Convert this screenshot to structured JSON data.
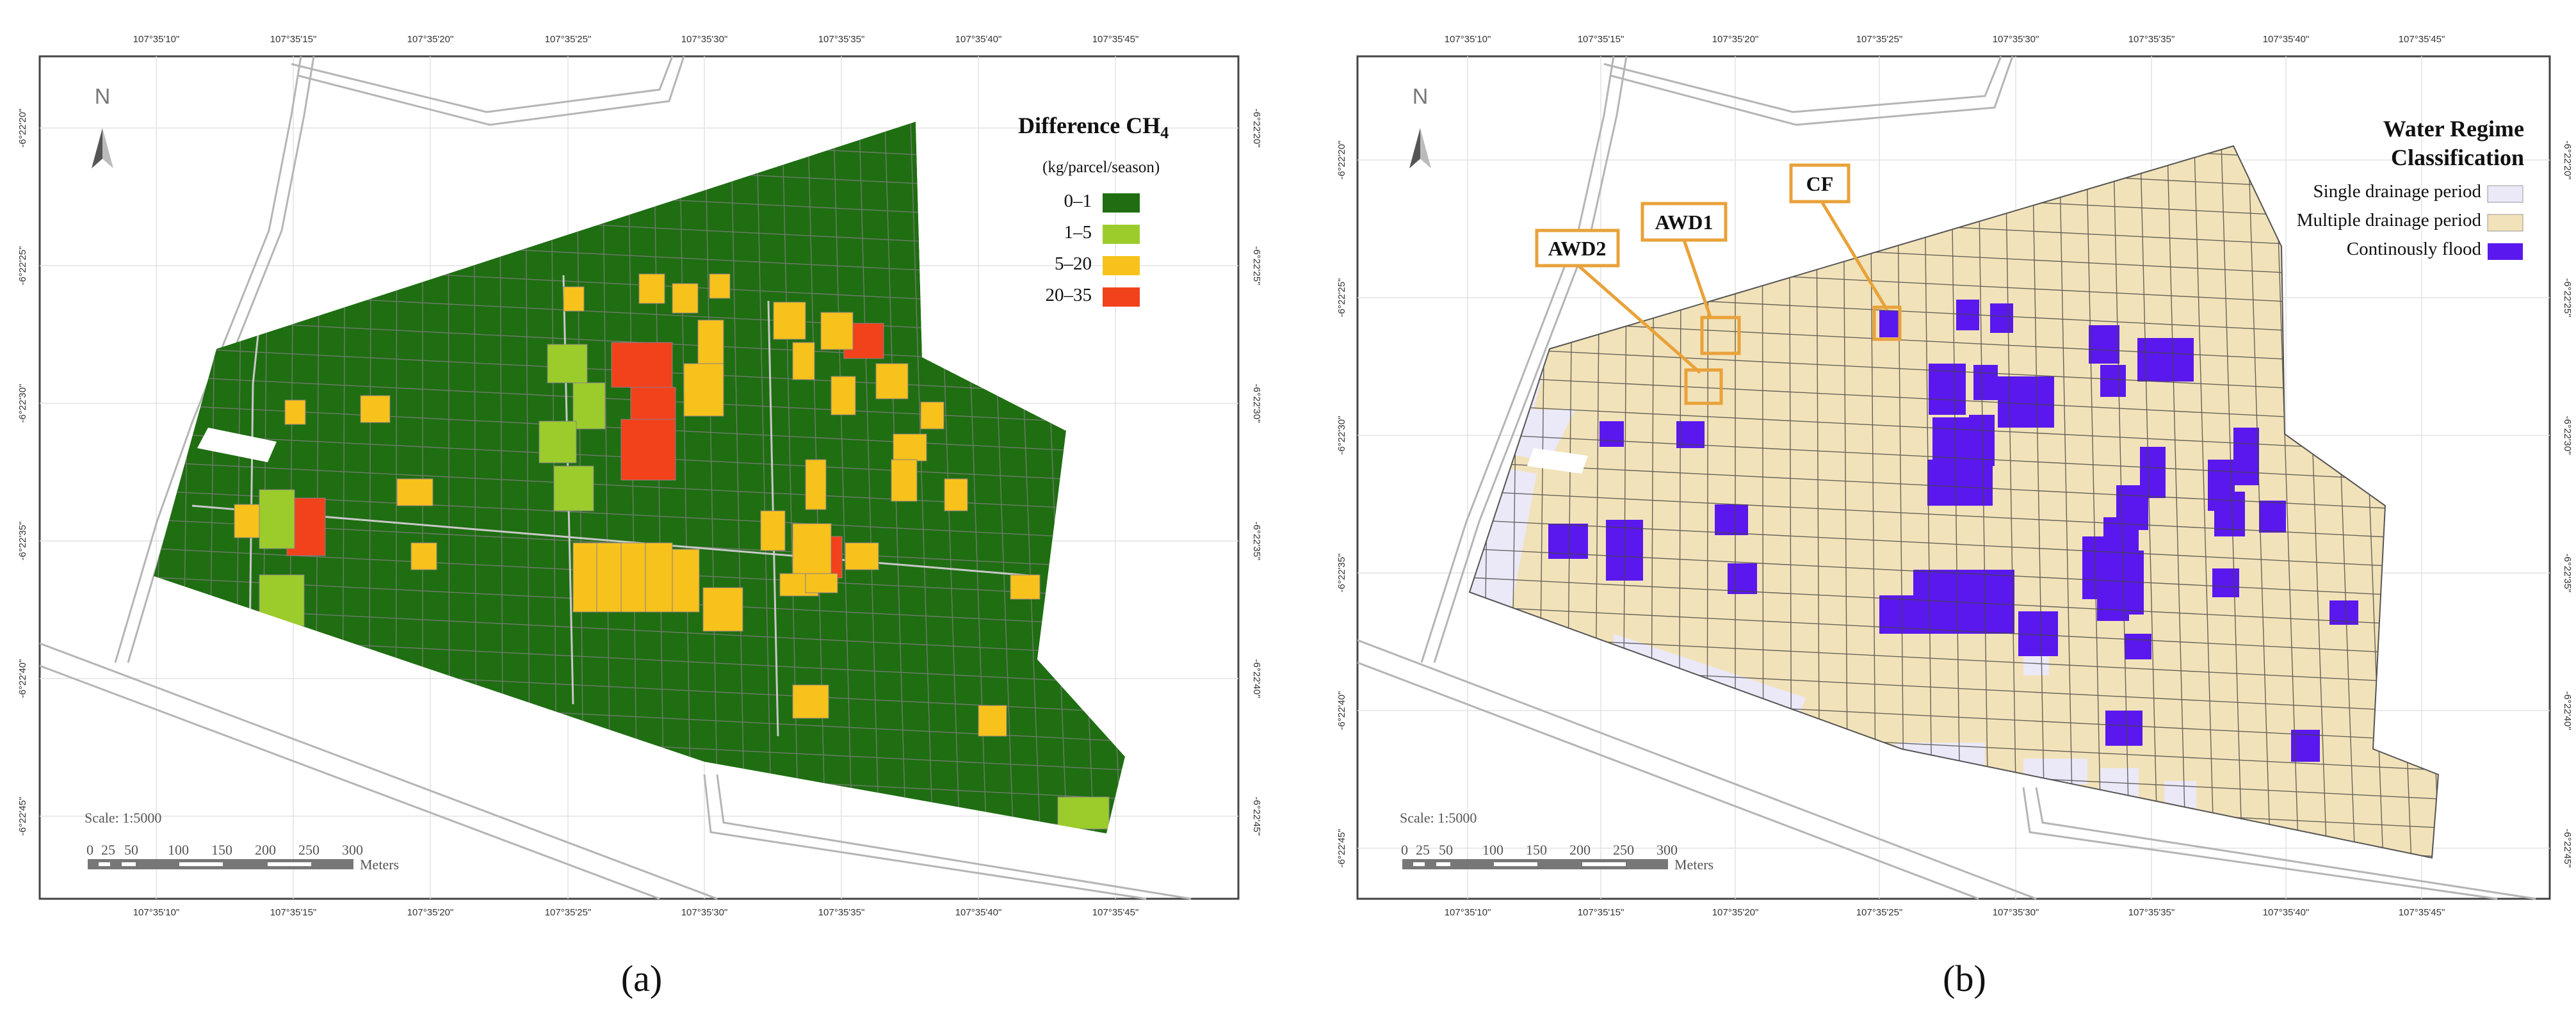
{
  "panels": {
    "a": {
      "label": "(a)",
      "legend": {
        "title_main": "Difference CH",
        "title_sub": "4",
        "unit": "(kg/parcel/season)",
        "classes": [
          {
            "label": "0–1",
            "color": "#1f6e12"
          },
          {
            "label": "1–5",
            "color": "#9ccc2c"
          },
          {
            "label": "5–20",
            "color": "#f7c21b"
          },
          {
            "label": "20–35",
            "color": "#f2421c"
          }
        ]
      },
      "scale_text": "Scale: 1:5000",
      "scale_ticks": [
        "0",
        "25",
        "50",
        "100",
        "150",
        "200",
        "250",
        "300"
      ],
      "scale_unit": "Meters",
      "north": "N",
      "lon_ticks": [
        "107°35'10\"",
        "107°35'15\"",
        "107°35'20\"",
        "107°35'25\"",
        "107°35'30\"",
        "107°35'35\"",
        "107°35'40\"",
        "107°35'45\""
      ],
      "lat_ticks": [
        "-6°22'20\"",
        "-6°22'25\"",
        "-6°22'30\"",
        "-6°22'35\"",
        "-6°22'40\"",
        "-6°22'45\""
      ]
    },
    "b": {
      "label": "(b)",
      "legend": {
        "title_line1": "Water Regime",
        "title_line2": "Classification",
        "classes": [
          {
            "label": "Single drainage period",
            "color": "#ebe8f7"
          },
          {
            "label": "Multiple drainage period",
            "color": "#f2e2b9"
          },
          {
            "label": "Continously flood",
            "color": "#5a18ee"
          }
        ]
      },
      "site_labels": [
        "AWD2",
        "AWD1",
        "CF"
      ],
      "site_color": "#e8a23a",
      "scale_text": "Scale: 1:5000",
      "scale_ticks": [
        "0",
        "25",
        "50",
        "100",
        "150",
        "200",
        "250",
        "300"
      ],
      "scale_unit": "Meters",
      "north": "N",
      "lon_ticks": [
        "107°35'10\"",
        "107°35'15\"",
        "107°35'20\"",
        "107°35'25\"",
        "107°35'30\"",
        "107°35'35\"",
        "107°35'40\"",
        "107°35'45\""
      ],
      "lat_ticks": [
        "-6°22'20\"",
        "-6°22'25\"",
        "-6°22'30\"",
        "-6°22'35\"",
        "-6°22'40\"",
        "-6°22'45\""
      ]
    }
  }
}
